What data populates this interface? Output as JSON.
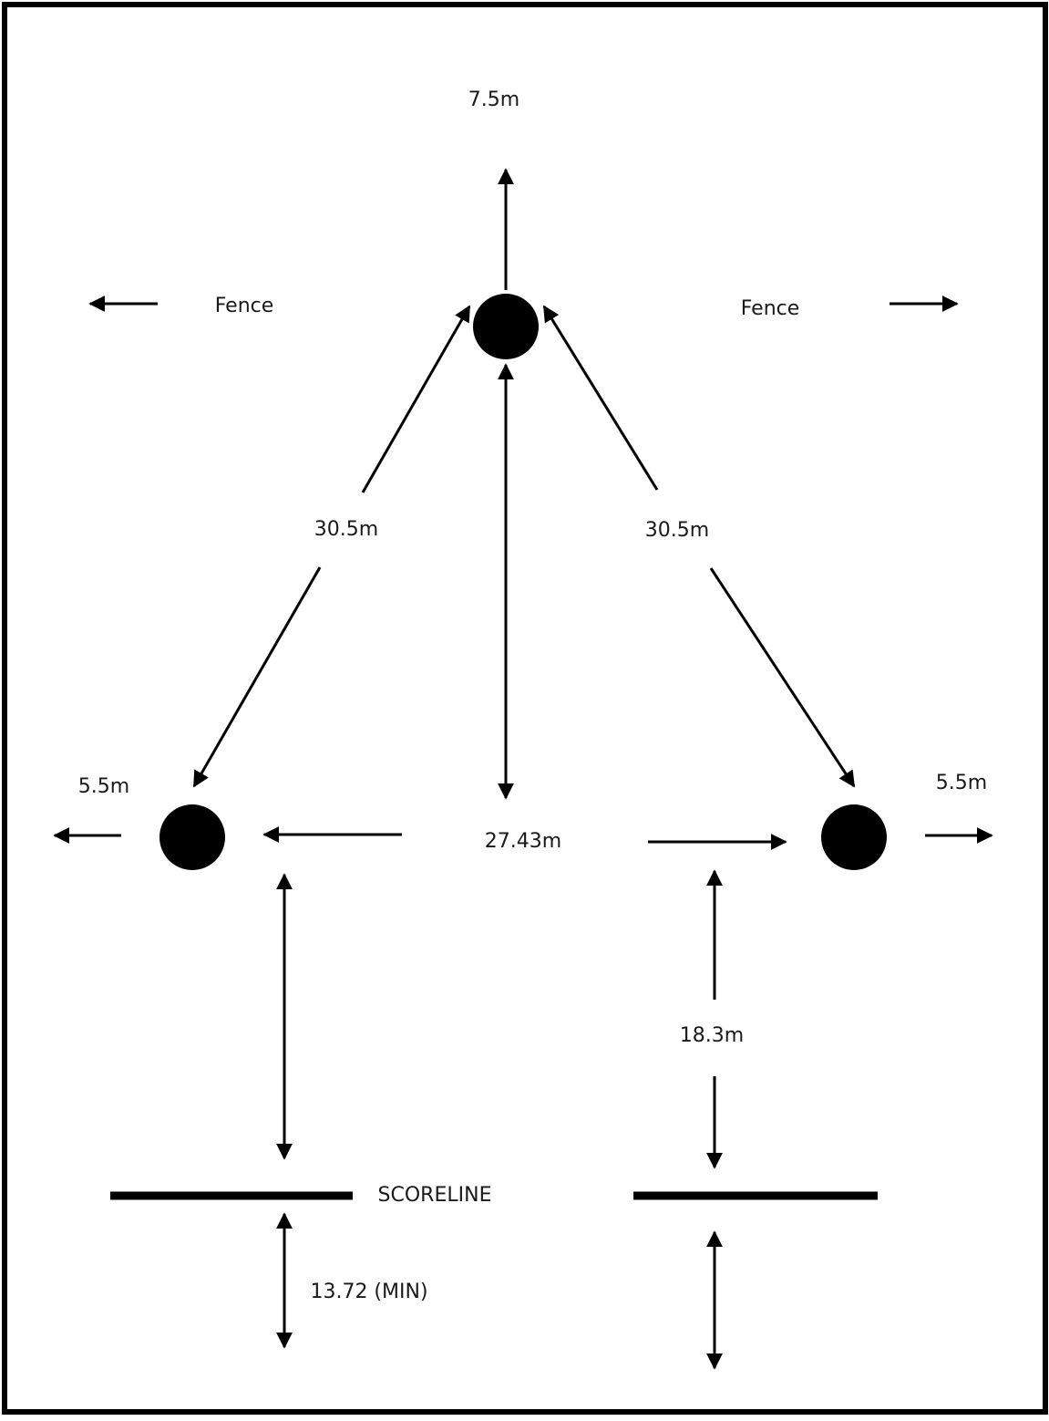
{
  "labels": {
    "top_distance": "7.5m",
    "fence_left": "Fence",
    "fence_right": "Fence",
    "diagonal_left": "30.5m",
    "diagonal_right": "30.5m",
    "side_left": "5.5m",
    "side_right": "5.5m",
    "base_span": "27.43m",
    "to_scoreline": "18.3m",
    "scoreline": "SCORELINE",
    "behind_scoreline": "13.72 (MIN)"
  },
  "colors": {
    "ink": "#000000",
    "background": "#ffffff"
  }
}
